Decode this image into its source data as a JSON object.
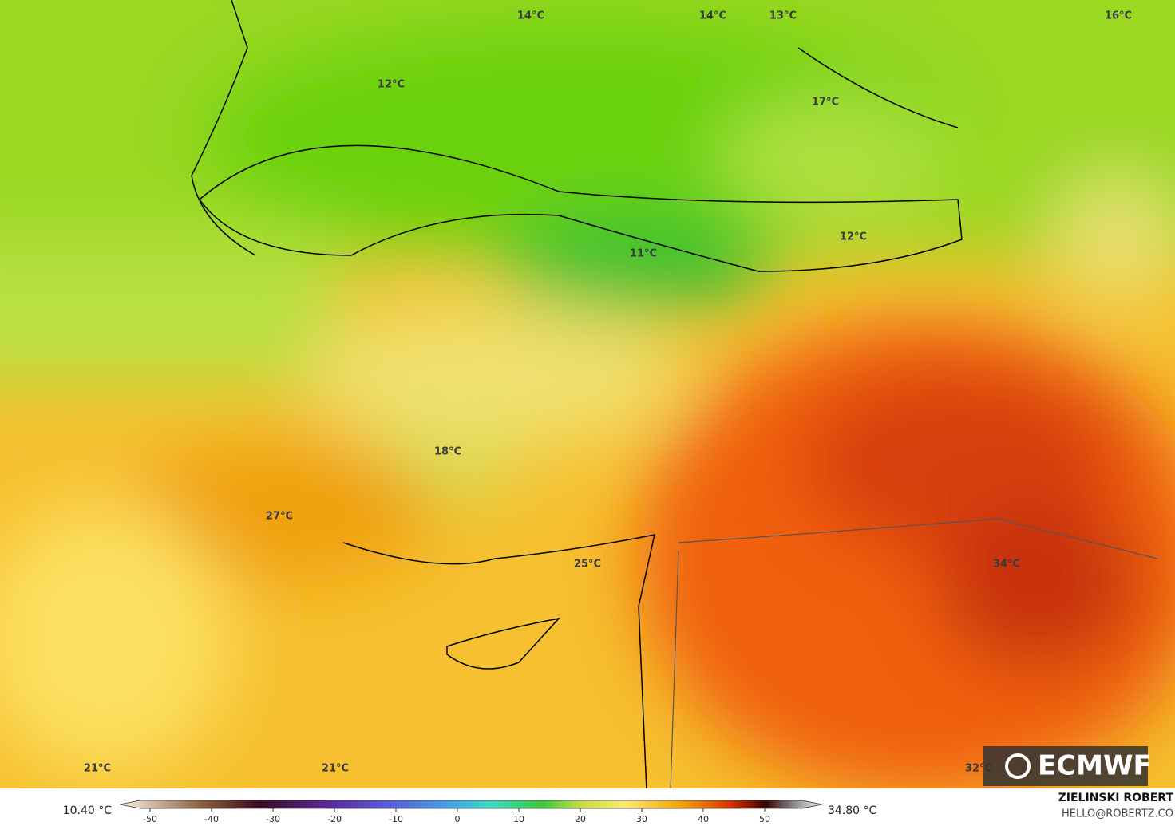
{
  "map": {
    "labels": [
      "14°C",
      "14°C",
      "13°C",
      "16°C",
      "12°C",
      "17°C",
      "12°C",
      "11°C",
      "18°C",
      "27°C",
      "25°C",
      "34°C",
      "21°C",
      "21°C",
      "32°C"
    ],
    "colorbar": {
      "min_label": "10.40 °C",
      "max_label": "34.80 °C",
      "ticks": [
        -50,
        -40,
        -30,
        -20,
        -10,
        0,
        10,
        20,
        30,
        40,
        50
      ]
    },
    "logo": "ECMWF",
    "credit": {
      "name": "ZIELINSKI ROBERT",
      "contact": "HELLO@ROBERTZ.CO"
    }
  }
}
